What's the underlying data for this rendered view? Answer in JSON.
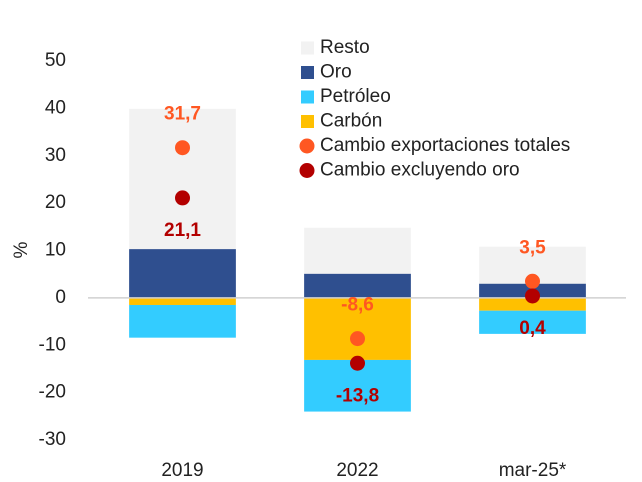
{
  "chart_data": {
    "type": "bar",
    "stacked": true,
    "y_label": "%",
    "categories": [
      "2019",
      "2022",
      "mar-25*"
    ],
    "series": [
      {
        "name": "Resto",
        "type": "bar",
        "color": "#f2f2f2",
        "values": [
          29.6,
          9.7,
          7.8
        ]
      },
      {
        "name": "Oro",
        "type": "bar",
        "color": "#2f4f8f",
        "values": [
          10.3,
          5.1,
          3.0
        ]
      },
      {
        "name": "Petróleo",
        "type": "bar",
        "color": "#33ccff",
        "values": [
          -6.9,
          -10.9,
          -4.9
        ]
      },
      {
        "name": "Carbón",
        "type": "bar",
        "color": "#ffc000",
        "values": [
          -1.5,
          -13.1,
          -2.7
        ]
      },
      {
        "name": "Cambio exportaciones totales",
        "type": "dot",
        "color": "#ff5722",
        "values": [
          31.7,
          -8.6,
          3.5
        ],
        "value_labels": [
          "31,7",
          "-8,6",
          "3,5"
        ]
      },
      {
        "name": "Cambio excluyendo oro",
        "type": "dot",
        "color": "#b30000",
        "values": [
          21.1,
          -13.8,
          0.4
        ],
        "value_labels": [
          "21,1",
          "-13,8",
          "0,4"
        ]
      }
    ],
    "ylim": [
      -30,
      50
    ],
    "yticks": [
      -30,
      -20,
      -10,
      0,
      10,
      20,
      30,
      40,
      50
    ],
    "grid": false,
    "legend": "top-right"
  }
}
